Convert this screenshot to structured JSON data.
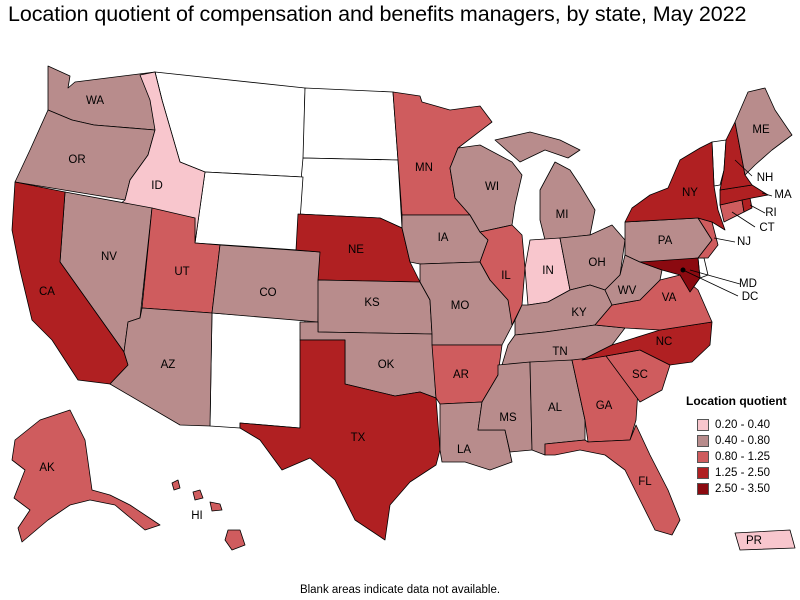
{
  "title": "Location quotient of compensation and benefits managers, by state, May 2022",
  "note": "Blank areas indicate data not available.",
  "colors": {
    "c1": "#f8c6cd",
    "c2": "#b88c8c",
    "c3": "#cf5c5e",
    "c4": "#b02022",
    "c5": "#8b0a10",
    "na": "#ffffff"
  },
  "legend": {
    "title": "Location quotient",
    "items": [
      {
        "label": "0.20 - 0.40",
        "color": "#f8c6cd"
      },
      {
        "label": "0.40 - 0.80",
        "color": "#b88c8c"
      },
      {
        "label": "0.80 - 1.25",
        "color": "#cf5c5e"
      },
      {
        "label": "1.25 - 2.50",
        "color": "#b02022"
      },
      {
        "label": "2.50 - 3.50",
        "color": "#8b0a10"
      }
    ]
  },
  "states": {
    "WA": "WA",
    "OR": "OR",
    "ID": "ID",
    "NV": "NV",
    "CA": "CA",
    "UT": "UT",
    "AZ": "AZ",
    "CO": "CO",
    "NE": "NE",
    "KS": "KS",
    "OK": "OK",
    "TX": "TX",
    "MN": "MN",
    "IA": "IA",
    "MO": "MO",
    "AR": "AR",
    "LA": "LA",
    "WI": "WI",
    "IL": "IL",
    "MI": "MI",
    "IN": "IN",
    "OH": "OH",
    "KY": "KY",
    "TN": "TN",
    "MS": "MS",
    "AL": "AL",
    "GA": "GA",
    "FL": "FL",
    "SC": "SC",
    "NC": "NC",
    "VA": "VA",
    "WV": "WV",
    "PA": "PA",
    "NY": "NY",
    "ME": "ME",
    "NH": "NH",
    "MA": "MA",
    "RI": "RI",
    "CT": "CT",
    "NJ": "NJ",
    "MD": "MD",
    "DC": "DC",
    "AK": "AK",
    "HI": "HI",
    "PR": "PR"
  }
}
